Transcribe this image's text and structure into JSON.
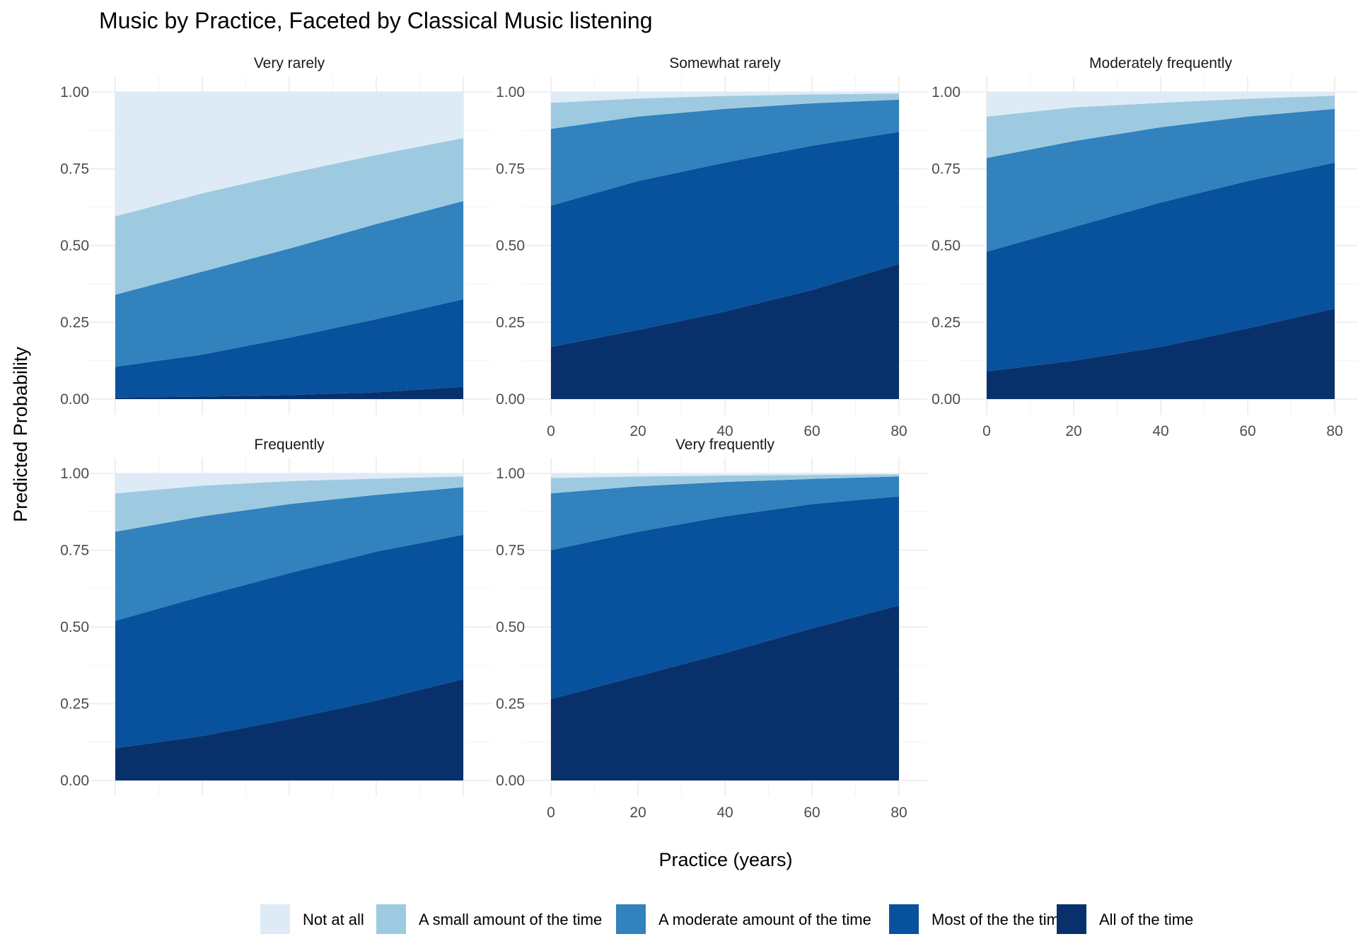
{
  "chart_data": {
    "type": "area",
    "stacked": true,
    "title": "Music by Practice, Faceted by Classical Music listening",
    "xlabel": "Practice (years)",
    "ylabel": "Predicted Probability",
    "xlim": [
      0,
      80
    ],
    "ylim": [
      0,
      1
    ],
    "x_ticks": [
      "0",
      "20",
      "40",
      "60",
      "80"
    ],
    "y_ticks": [
      "0.00",
      "0.25",
      "0.50",
      "0.75",
      "1.00"
    ],
    "x": [
      0,
      20,
      40,
      60,
      80
    ],
    "grid": true,
    "legend_position": "bottom",
    "categories": [
      {
        "name": "Not at all",
        "color": "#deebf7"
      },
      {
        "name": "A small amount of the time",
        "color": "#9ecae1"
      },
      {
        "name": "A moderate amount of the time",
        "color": "#3182bd"
      },
      {
        "name": "Most of the the time",
        "color": "#08519c"
      },
      {
        "name": "All of the time",
        "color": "#08306b"
      }
    ],
    "facets": [
      {
        "label": "Very rarely",
        "cumulative": [
          [
            0.005,
            0.008,
            0.013,
            0.022,
            0.04
          ],
          [
            0.105,
            0.145,
            0.2,
            0.26,
            0.325
          ],
          [
            0.34,
            0.415,
            0.49,
            0.57,
            0.645
          ],
          [
            0.595,
            0.67,
            0.735,
            0.795,
            0.85
          ]
        ]
      },
      {
        "label": "Somewhat rarely",
        "cumulative": [
          [
            0.17,
            0.225,
            0.285,
            0.355,
            0.44
          ],
          [
            0.63,
            0.71,
            0.77,
            0.825,
            0.87
          ],
          [
            0.88,
            0.92,
            0.945,
            0.963,
            0.975
          ],
          [
            0.965,
            0.979,
            0.987,
            0.992,
            0.995
          ]
        ]
      },
      {
        "label": "Moderately frequently",
        "cumulative": [
          [
            0.09,
            0.125,
            0.17,
            0.23,
            0.295
          ],
          [
            0.48,
            0.56,
            0.64,
            0.71,
            0.77
          ],
          [
            0.785,
            0.84,
            0.885,
            0.92,
            0.945
          ],
          [
            0.92,
            0.95,
            0.965,
            0.978,
            0.988
          ]
        ]
      },
      {
        "label": "Frequently",
        "cumulative": [
          [
            0.105,
            0.145,
            0.2,
            0.26,
            0.33
          ],
          [
            0.52,
            0.6,
            0.675,
            0.745,
            0.8
          ],
          [
            0.81,
            0.86,
            0.9,
            0.93,
            0.955
          ],
          [
            0.935,
            0.96,
            0.975,
            0.983,
            0.99
          ]
        ]
      },
      {
        "label": "Very frequently",
        "cumulative": [
          [
            0.265,
            0.34,
            0.415,
            0.495,
            0.57
          ],
          [
            0.75,
            0.81,
            0.86,
            0.9,
            0.925
          ],
          [
            0.935,
            0.958,
            0.972,
            0.982,
            0.99
          ],
          [
            0.985,
            0.99,
            0.993,
            0.995,
            0.997
          ]
        ]
      }
    ]
  }
}
